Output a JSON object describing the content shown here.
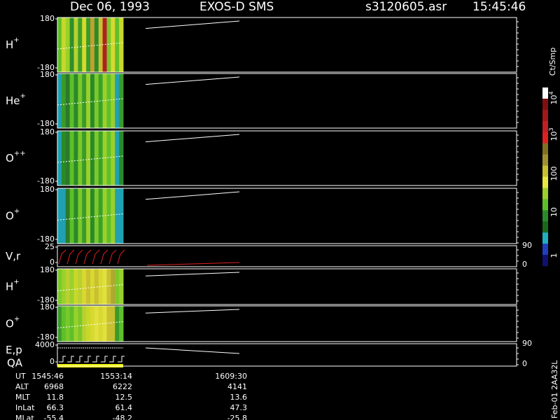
{
  "header": {
    "date": "Dec 06, 1993",
    "instrument": "EXOS-D SMS",
    "file": "s3120605.asr",
    "time": "15:45:46"
  },
  "panels": [
    {
      "label": "H",
      "sup": "+",
      "ticks": [
        "180",
        "-180"
      ],
      "stripes": [
        "#5fbf2a",
        "#c8d82a",
        "#9ad02a",
        "#2f8f2a",
        "#b8d030",
        "#3aa02a",
        "#d8d82a",
        "#3a9a2a",
        "#c0a030",
        "#2a8a2a",
        "#c8c030",
        "#b02020",
        "#7ac82a",
        "#d8d830"
      ]
    },
    {
      "label": "He",
      "sup": "+",
      "ticks": [
        "180",
        "-180"
      ],
      "stripes": [
        "#20a0b0",
        "#3a9a2a",
        "#2a7a2a",
        "#5fbf2a",
        "#2a8a2a",
        "#7ac82a",
        "#3a9a2a",
        "#9ad02a",
        "#2a8a2a",
        "#7ac82a",
        "#3aa02a",
        "#9ad02a",
        "#5fbf2a",
        "#9ad02a"
      ]
    },
    {
      "label": "O",
      "sup": "++",
      "ticks": [
        "180",
        "-180"
      ],
      "stripes": [
        "#20a0b0",
        "#2a8a2a",
        "#2a7a2a",
        "#5fbf2a",
        "#2a8a2a",
        "#7ac82a",
        "#3a9a2a",
        "#9ad02a",
        "#2a8a2a",
        "#7ac82a",
        "#3aa02a",
        "#9ad02a",
        "#5fbf2a",
        "#9ad02a"
      ]
    },
    {
      "label": "O",
      "sup": "+",
      "ticks": [
        "180",
        "-180"
      ],
      "stripes": [
        "#20a0b0",
        "#20a0b0",
        "#2a7a2a",
        "#5fbf2a",
        "#2a8a2a",
        "#7ac82a",
        "#3a9a2a",
        "#9ad02a",
        "#2a8a2a",
        "#7ac82a",
        "#3aa02a",
        "#9ad02a",
        "#5fbf2a",
        "#9ad02a"
      ]
    },
    {
      "label": "V,r",
      "ticks": [
        "25",
        "0"
      ],
      "right_ticks": [
        "90",
        "0"
      ]
    },
    {
      "label": "H",
      "sup": "+",
      "ticks": [
        "180",
        "-180"
      ],
      "stripes": [
        "#7ac82a",
        "#9ad02a",
        "#b8d030",
        "#9ad02a",
        "#c8d82a",
        "#b8d030",
        "#d8d830",
        "#c8c030",
        "#d8d830",
        "#c8c030",
        "#d8d830",
        "#e0e040",
        "#c8c030",
        "#b0a830"
      ]
    },
    {
      "label": "O",
      "sup": "+",
      "ticks": [
        "180",
        "-180"
      ],
      "stripes": [
        "#3a9a2a",
        "#5fbf2a",
        "#7ac82a",
        "#5fbf2a",
        "#9ad02a",
        "#7ac82a",
        "#b8d030",
        "#c8d82a",
        "#d8d830",
        "#e0e040",
        "#d8d830",
        "#e0e040",
        "#c8c030",
        "#c8c030"
      ]
    },
    {
      "label": "E,p",
      "label2": "QA",
      "ticks": [
        "4000",
        "0"
      ],
      "right_ticks": [
        "90",
        "0"
      ]
    }
  ],
  "colorbar": {
    "title": "Ct/Smp",
    "labels": [
      {
        "base": "10",
        "sup": "4"
      },
      {
        "base": "10",
        "sup": "3"
      },
      "100",
      "10",
      "1"
    ],
    "colors": [
      "#ffffff",
      "#801010",
      "#a01818",
      "#c02020",
      "#e02020",
      "#807020",
      "#a09030",
      "#c8c030",
      "#e8e840",
      "#9ad02a",
      "#5fbf2a",
      "#2a8a2a",
      "#1a6a1a",
      "#20b0c0",
      "#2040c0",
      "#101070"
    ]
  },
  "footer": {
    "rows": [
      [
        "UT",
        "1545:46",
        "1553:14",
        "1609:30"
      ],
      [
        "ALT",
        "6968",
        "6222",
        "4141"
      ],
      [
        "MLT",
        "11.8",
        "12.5",
        "13.6"
      ],
      [
        "InLat",
        "66.3",
        "61.4",
        "47.3"
      ],
      [
        "MLat",
        "-55.4",
        "-48.2",
        "-25.8"
      ]
    ]
  },
  "side_note": "Feb-01 2AA32L"
}
